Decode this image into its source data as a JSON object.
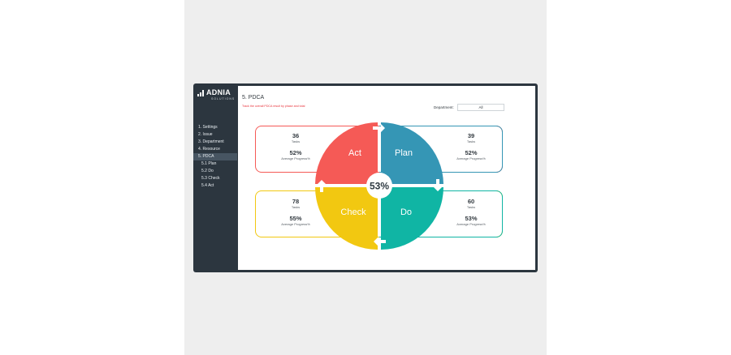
{
  "app": {
    "logo_name": "ADNIA",
    "logo_sub": "SOLUTIONS"
  },
  "sidebar": {
    "items": [
      {
        "label": "1. Settings"
      },
      {
        "label": "2. Issue"
      },
      {
        "label": "3. Department"
      },
      {
        "label": "4. Resource"
      },
      {
        "label": "5. PDCA",
        "active": true
      },
      {
        "label": "5.1 Plan"
      },
      {
        "label": "5.2 Do"
      },
      {
        "label": "5.3 Check"
      },
      {
        "label": "5.4 Act"
      }
    ]
  },
  "header": {
    "title": "5. PDCA",
    "subtitle": "Track the overall PDCA result by phase and total",
    "department_label": "Department:",
    "department_value": "All"
  },
  "pdca": {
    "total_percent": "53%",
    "phases": {
      "act": {
        "label": "Act",
        "tasks": "36",
        "tasks_label": "Tasks",
        "progress": "52%",
        "progress_label": "Average Progress%",
        "color": "#f55a56"
      },
      "plan": {
        "label": "Plan",
        "tasks": "39",
        "tasks_label": "Tasks",
        "progress": "52%",
        "progress_label": "Average Progress%",
        "color": "#3596b5"
      },
      "check": {
        "label": "Check",
        "tasks": "78",
        "tasks_label": "Tasks",
        "progress": "55%",
        "progress_label": "Average Progress%",
        "color": "#f2c811"
      },
      "do": {
        "label": "Do",
        "tasks": "60",
        "tasks_label": "Tasks",
        "progress": "53%",
        "progress_label": "Average Progress%",
        "color": "#10b5a4"
      }
    }
  }
}
